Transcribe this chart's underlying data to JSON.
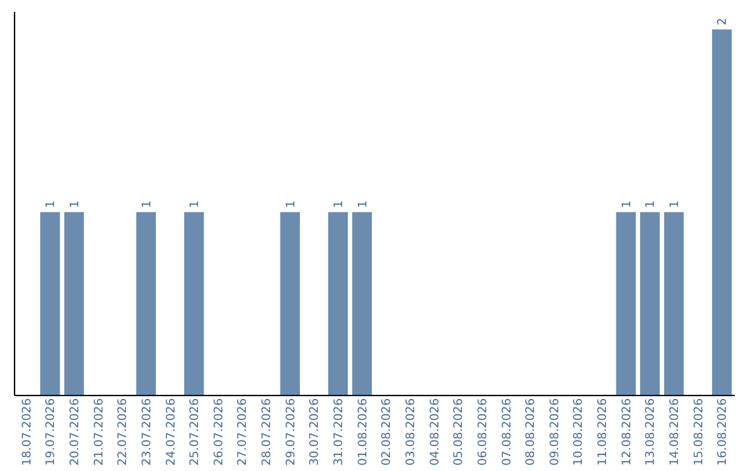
{
  "chart_data": {
    "type": "bar",
    "categories": [
      "18.07.2026",
      "19.07.2026",
      "20.07.2026",
      "21.07.2026",
      "22.07.2026",
      "23.07.2026",
      "24.07.2026",
      "25.07.2026",
      "26.07.2026",
      "27.07.2026",
      "28.07.2026",
      "29.07.2026",
      "30.07.2026",
      "31.07.2026",
      "01.08.2026",
      "02.08.2026",
      "03.08.2026",
      "04.08.2026",
      "05.08.2026",
      "06.08.2026",
      "07.08.2026",
      "08.08.2026",
      "09.08.2026",
      "10.08.2026",
      "11.08.2026",
      "12.08.2026",
      "13.08.2026",
      "14.08.2026",
      "15.08.2026",
      "16.08.2026"
    ],
    "values": [
      0,
      1,
      1,
      0,
      0,
      1,
      0,
      1,
      0,
      0,
      0,
      1,
      0,
      1,
      1,
      0,
      0,
      0,
      0,
      0,
      0,
      0,
      0,
      0,
      0,
      1,
      1,
      1,
      0,
      2
    ],
    "value_labels": [
      null,
      "1",
      "1",
      null,
      null,
      "1",
      null,
      "1",
      null,
      null,
      null,
      "1",
      null,
      "1",
      "1",
      null,
      null,
      null,
      null,
      null,
      null,
      null,
      null,
      null,
      null,
      "1",
      "1",
      "1",
      null,
      "2"
    ],
    "color": "#6b8cae",
    "ylim": [
      0,
      2.1
    ],
    "tick_labels": "x"
  }
}
